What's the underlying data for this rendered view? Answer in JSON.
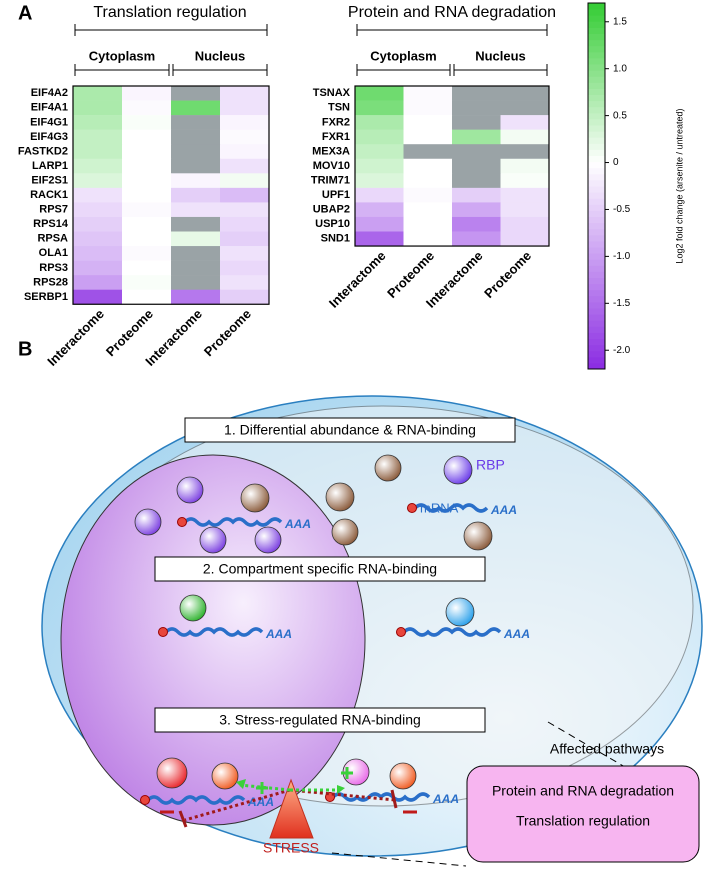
{
  "panel_a": {
    "label": "A",
    "heatmaps": [
      {
        "title": "Translation regulation",
        "groups": [
          "Cytoplasm",
          "Nucleus"
        ],
        "columns": [
          "Interactome",
          "Proteome",
          "Interactome",
          "Proteome"
        ],
        "rows": [
          "EIF4A2",
          "EIF4A1",
          "EIF4G1",
          "EIF4G3",
          "FASTKD2",
          "LARP1",
          "EIF2S1",
          "RACK1",
          "RPS7",
          "RPS14",
          "RPSA",
          "OLA1",
          "RPS3",
          "RPS28",
          "SERBP1"
        ],
        "values": [
          [
            0.7,
            -0.1,
            null,
            -0.3
          ],
          [
            0.7,
            -0.05,
            1.2,
            -0.3
          ],
          [
            0.6,
            0.05,
            null,
            -0.1
          ],
          [
            0.5,
            0,
            null,
            -0.05
          ],
          [
            0.5,
            0,
            null,
            -0.1
          ],
          [
            0.4,
            0,
            null,
            -0.3
          ],
          [
            0.3,
            0,
            -0.1,
            0.1
          ],
          [
            -0.3,
            0,
            -0.5,
            -0.7
          ],
          [
            -0.4,
            -0.05,
            -0.3,
            -0.3
          ],
          [
            -0.5,
            0,
            null,
            -0.4
          ],
          [
            -0.6,
            0,
            0.2,
            -0.5
          ],
          [
            -0.7,
            -0.05,
            null,
            -0.3
          ],
          [
            -0.8,
            0,
            null,
            -0.4
          ],
          [
            -1.0,
            0.05,
            null,
            -0.3
          ],
          [
            -1.8,
            0,
            -1.4,
            -0.5
          ]
        ]
      },
      {
        "title": "Protein and RNA degradation",
        "groups": [
          "Cytoplasm",
          "Nucleus"
        ],
        "columns": [
          "Interactome",
          "Proteome",
          "Interactome",
          "Proteome"
        ],
        "rows": [
          "TSNAX",
          "TSN",
          "FXR2",
          "FXR1",
          "MEX3A",
          "MOV10",
          "TRIM71",
          "UPF1",
          "UBAP2",
          "USP10",
          "SND1"
        ],
        "values": [
          [
            1.2,
            -0.05,
            null,
            null
          ],
          [
            1.1,
            -0.05,
            null,
            null
          ],
          [
            0.7,
            0,
            null,
            -0.3
          ],
          [
            0.6,
            0,
            0.8,
            0.1
          ],
          [
            0.5,
            null,
            null,
            null
          ],
          [
            0.4,
            0,
            null,
            0.1
          ],
          [
            0.3,
            0,
            null,
            0.05
          ],
          [
            -0.4,
            -0.05,
            -0.5,
            -0.3
          ],
          [
            -0.8,
            0,
            -0.9,
            -0.3
          ],
          [
            -1.0,
            0,
            -1.3,
            -0.4
          ],
          [
            -1.6,
            0,
            -1.1,
            -0.4
          ]
        ]
      }
    ],
    "colorbar": {
      "label": "Log2 fold change (arsenite / untreated)",
      "lim": [
        -2.2,
        1.7
      ],
      "ticks": [
        1.5,
        {
          "value": 1,
          "label": "1.0"
        },
        0.5,
        0,
        -0.5,
        {
          "value": -1,
          "label": "-1.0"
        },
        -1.5,
        {
          "value": -2,
          "label": "-2.0"
        }
      ],
      "colors": {
        "positive": "#33cc33",
        "zero": "#ffffff",
        "negative": "#8a2be2",
        "missing": "#9aa3a6"
      }
    }
  },
  "panel_b": {
    "label": "B",
    "steps": [
      "1. Differential abundance & RNA-binding",
      "2. Compartment specific RNA-binding",
      "3. Stress-regulated RNA-binding"
    ],
    "rbp": "RBP",
    "mrna": "mRNA",
    "polya": "AAA",
    "stress": "STRESS",
    "pathways_title": "Affected pathways",
    "pathways": [
      "Protein and RNA degradation",
      "Translation regulation"
    ]
  }
}
